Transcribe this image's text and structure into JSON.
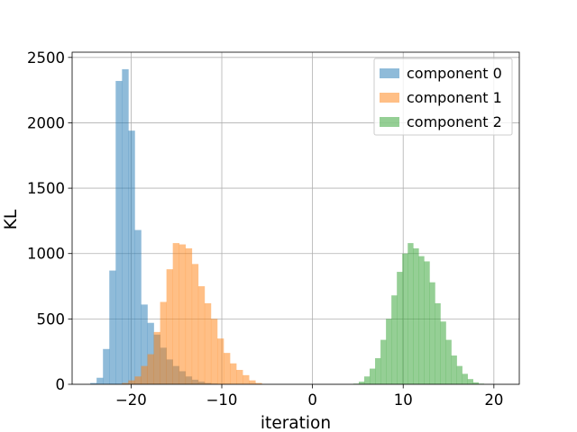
{
  "chart_data": {
    "type": "bar",
    "title": "",
    "xlabel": "iteration",
    "ylabel": "KL",
    "xlim": [
      -26.5,
      22.8
    ],
    "ylim": [
      0,
      2540
    ],
    "xticks": [
      -20,
      -10,
      0,
      10,
      20
    ],
    "xtick_labels": [
      "−20",
      "−10",
      "0",
      "10",
      "20"
    ],
    "yticks": [
      0,
      500,
      1000,
      1500,
      2000,
      2500
    ],
    "ytick_labels": [
      "0",
      "500",
      "1000",
      "1500",
      "2000",
      "2500"
    ],
    "grid": true,
    "legend_position": "top-right",
    "series": [
      {
        "name": "component 0",
        "color": "#1f77b4",
        "opacity": 0.5,
        "bin_edges": [
          -24.5,
          -23.8,
          -23.1,
          -22.4,
          -21.7,
          -21.0,
          -20.3,
          -19.6,
          -18.9,
          -18.2,
          -17.5,
          -16.8,
          -16.1,
          -15.4,
          -14.7,
          -14.0,
          -13.3,
          -12.6,
          -11.9,
          -11.2,
          -10.5
        ],
        "counts": [
          10,
          50,
          270,
          870,
          2320,
          2410,
          1940,
          1180,
          610,
          470,
          380,
          280,
          190,
          140,
          100,
          60,
          35,
          20,
          10,
          5
        ]
      },
      {
        "name": "component 1",
        "color": "#ff7f0e",
        "opacity": 0.5,
        "bin_edges": [
          -21.0,
          -20.3,
          -19.6,
          -18.9,
          -18.2,
          -17.5,
          -16.8,
          -16.1,
          -15.4,
          -14.7,
          -14.0,
          -13.3,
          -12.6,
          -11.9,
          -11.2,
          -10.5,
          -9.8,
          -9.1,
          -8.4,
          -7.7,
          -7.0,
          -6.3,
          -5.6
        ],
        "counts": [
          10,
          30,
          60,
          140,
          230,
          400,
          630,
          880,
          1080,
          1070,
          1040,
          920,
          750,
          620,
          500,
          350,
          240,
          160,
          110,
          70,
          30,
          10
        ]
      },
      {
        "name": "component 2",
        "color": "#2ca02c",
        "opacity": 0.5,
        "bin_edges": [
          4.5,
          5.1,
          5.7,
          6.3,
          6.9,
          7.5,
          8.1,
          8.7,
          9.3,
          9.9,
          10.5,
          11.1,
          11.7,
          12.3,
          12.9,
          13.5,
          14.1,
          14.7,
          15.3,
          15.9,
          16.5,
          17.1,
          17.7,
          18.3,
          18.9
        ],
        "counts": [
          5,
          20,
          60,
          120,
          200,
          340,
          500,
          680,
          860,
          1000,
          1080,
          1040,
          980,
          940,
          780,
          620,
          480,
          340,
          220,
          140,
          80,
          40,
          15,
          5
        ]
      }
    ]
  }
}
